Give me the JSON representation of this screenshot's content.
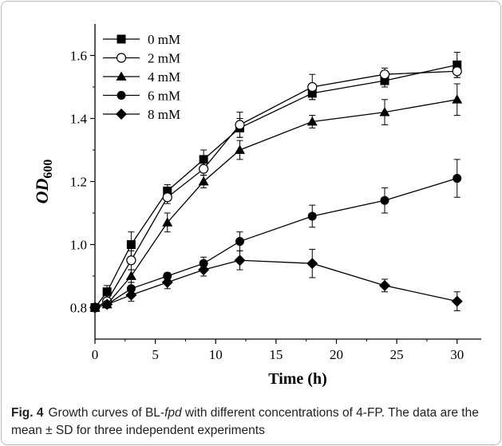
{
  "chart_data": {
    "type": "line",
    "x": [
      0,
      1,
      3,
      6,
      9,
      12,
      18,
      24,
      30
    ],
    "series": [
      {
        "name": "0 mM",
        "marker": "square-filled",
        "values": [
          0.8,
          0.85,
          1.0,
          1.17,
          1.27,
          1.37,
          1.48,
          1.52,
          1.57
        ],
        "errors": [
          0.01,
          0.02,
          0.04,
          0.02,
          0.03,
          0.03,
          0.02,
          0.02,
          0.04
        ]
      },
      {
        "name": "2 mM",
        "marker": "circle-open",
        "values": [
          0.8,
          0.82,
          0.95,
          1.15,
          1.24,
          1.38,
          1.5,
          1.54,
          1.55
        ],
        "errors": [
          0.01,
          0.01,
          0.03,
          0.02,
          0.02,
          0.04,
          0.04,
          0.02,
          0.02
        ]
      },
      {
        "name": "4 mM",
        "marker": "triangle-filled",
        "values": [
          0.8,
          0.81,
          0.9,
          1.07,
          1.2,
          1.3,
          1.39,
          1.42,
          1.46
        ],
        "errors": [
          0.01,
          0.01,
          0.02,
          0.03,
          0.02,
          0.03,
          0.02,
          0.04,
          0.05
        ]
      },
      {
        "name": "6 mM",
        "marker": "circle-filled",
        "values": [
          0.8,
          0.81,
          0.86,
          0.9,
          0.94,
          1.01,
          1.09,
          1.14,
          1.21
        ],
        "errors": [
          0.01,
          0.01,
          0.02,
          0.01,
          0.02,
          0.03,
          0.035,
          0.04,
          0.06
        ]
      },
      {
        "name": "8 mM",
        "marker": "diamond-filled",
        "values": [
          0.8,
          0.81,
          0.84,
          0.88,
          0.92,
          0.95,
          0.94,
          0.87,
          0.82
        ],
        "errors": [
          0.01,
          0.01,
          0.02,
          0.02,
          0.02,
          0.03,
          0.045,
          0.02,
          0.03
        ]
      }
    ],
    "xlabel": "Time (h)",
    "ylabel_main": "OD",
    "ylabel_sub": "600",
    "xlim": [
      0,
      32
    ],
    "ylim": [
      0.7,
      1.7
    ],
    "xticks": [
      0,
      5,
      10,
      15,
      20,
      25,
      30
    ],
    "yticks": [
      0.8,
      1.0,
      1.2,
      1.4,
      1.6
    ],
    "grid": false,
    "legend_position": "top-left"
  },
  "caption": {
    "label": "Fig. 4",
    "text_before": "Growth curves of BL-",
    "italic": "fpd",
    "text_after": " with different concentrations of 4-FP. The data are the mean ± SD for three independent experiments"
  },
  "colors": {
    "ink": "#000000",
    "frame": "#b9b9b9"
  }
}
